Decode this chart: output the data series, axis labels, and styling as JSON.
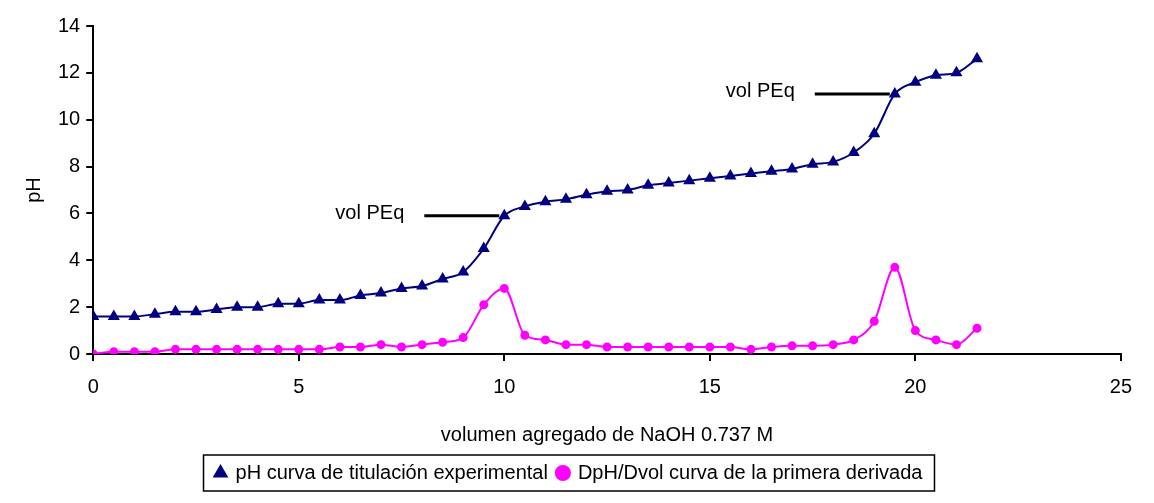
{
  "chart_data": {
    "type": "line",
    "xlabel": "volumen agregado de NaOH 0.737 M",
    "ylabel": "pH",
    "x": [
      0,
      0.5,
      1,
      1.5,
      2,
      2.5,
      3,
      3.5,
      4,
      4.5,
      5,
      5.5,
      6,
      6.5,
      7,
      7.5,
      8,
      8.5,
      9,
      9.5,
      10,
      10.5,
      11,
      11.5,
      12,
      12.5,
      13,
      13.5,
      14,
      14.5,
      15,
      15.5,
      16,
      16.5,
      17,
      17.5,
      18,
      18.5,
      19,
      19.5,
      20,
      20.5,
      21,
      21.5
    ],
    "series": [
      {
        "name": "pH curva de titulación experimental",
        "color": "#000080",
        "marker": "triangle",
        "values": [
          1.6,
          1.6,
          1.6,
          1.7,
          1.8,
          1.8,
          1.9,
          2.0,
          2.0,
          2.15,
          2.15,
          2.3,
          2.3,
          2.5,
          2.6,
          2.8,
          2.9,
          3.2,
          3.5,
          4.5,
          5.9,
          6.3,
          6.5,
          6.6,
          6.8,
          6.95,
          7.0,
          7.2,
          7.3,
          7.4,
          7.5,
          7.6,
          7.7,
          7.8,
          7.9,
          8.1,
          8.2,
          8.6,
          9.4,
          11.1,
          11.6,
          11.9,
          12.0,
          12.6
        ]
      },
      {
        "name": "DpH/Dvol curva de la primera derivada",
        "color": "#ff00ff",
        "marker": "circle",
        "values": [
          0,
          0.1,
          0.1,
          0.1,
          0.2,
          0.2,
          0.2,
          0.2,
          0.2,
          0.2,
          0.2,
          0.2,
          0.3,
          0.3,
          0.4,
          0.3,
          0.4,
          0.5,
          0.7,
          2.1,
          2.8,
          0.8,
          0.6,
          0.4,
          0.4,
          0.3,
          0.3,
          0.3,
          0.3,
          0.3,
          0.3,
          0.3,
          0.2,
          0.3,
          0.35,
          0.35,
          0.4,
          0.6,
          1.4,
          3.7,
          1.0,
          0.6,
          0.4,
          1.1
        ]
      }
    ],
    "xlim": [
      0,
      25
    ],
    "xticks": [
      0,
      5,
      10,
      15,
      20,
      25
    ],
    "ylim": [
      0,
      14
    ],
    "yticks": [
      0,
      2,
      4,
      6,
      8,
      10,
      12,
      14
    ],
    "grid": false,
    "legend": "bottom",
    "line_style": "solid",
    "annotations": [
      {
        "text": "vol PEq",
        "x": 10,
        "y": 5.9
      },
      {
        "text": "vol PEq",
        "x": 19.5,
        "y": 11.1
      }
    ]
  }
}
